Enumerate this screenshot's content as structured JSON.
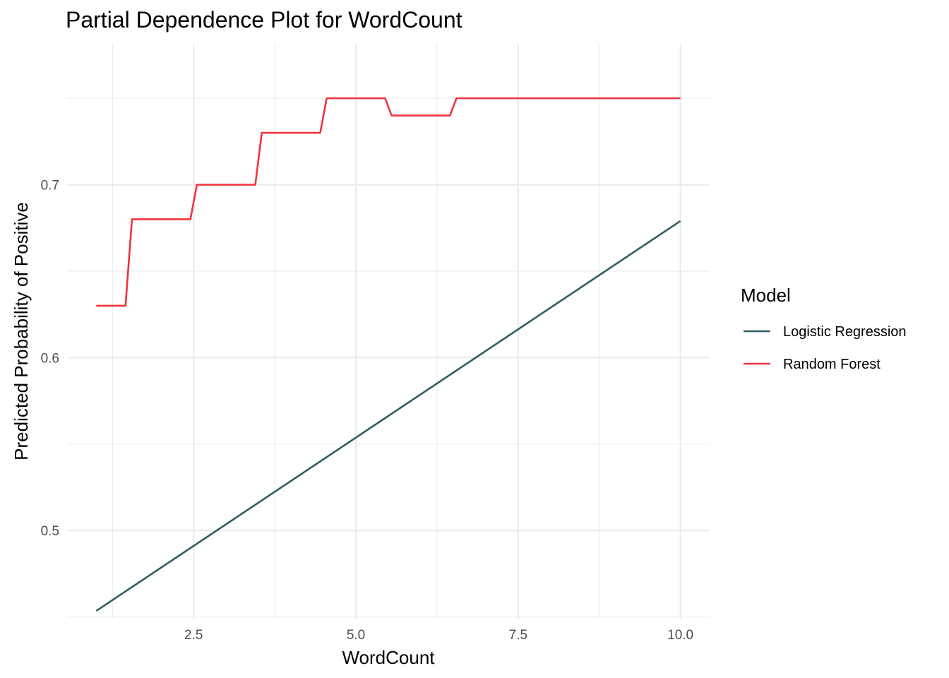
{
  "chart_data": {
    "type": "line",
    "title": "Partial Dependence Plot for WordCount",
    "xlabel": "WordCount",
    "ylabel": "Predicted Probability of Positive",
    "xlim": [
      0.55,
      10.45
    ],
    "ylim": [
      0.449,
      0.7815
    ],
    "x_ticks": [
      2.5,
      5.0,
      7.5,
      10.0
    ],
    "x_tick_labels": [
      "2.5",
      "5.0",
      "7.5",
      "10.0"
    ],
    "x_minor_ticks": [
      1.25,
      3.75,
      6.25,
      8.75
    ],
    "y_ticks": [
      0.5,
      0.6,
      0.7
    ],
    "y_tick_labels": [
      "0.5",
      "0.6",
      "0.7"
    ],
    "y_minor_ticks": [
      0.45,
      0.55,
      0.65,
      0.75
    ],
    "grid": true,
    "legend": {
      "title": "Model",
      "position": "right"
    },
    "series": [
      {
        "name": "Logistic Regression",
        "color": "#2F5D62",
        "x": [
          1.0,
          10.0
        ],
        "y": [
          0.4535,
          0.679
        ]
      },
      {
        "name": "Random Forest",
        "color": "#F2333F",
        "x": [
          1.0,
          1.45,
          1.55,
          2.45,
          2.55,
          3.45,
          3.55,
          4.45,
          4.55,
          5.45,
          5.55,
          6.45,
          6.55,
          10.0
        ],
        "y": [
          0.63,
          0.63,
          0.68,
          0.68,
          0.7,
          0.7,
          0.73,
          0.73,
          0.75,
          0.75,
          0.74,
          0.74,
          0.75,
          0.75
        ]
      }
    ]
  }
}
